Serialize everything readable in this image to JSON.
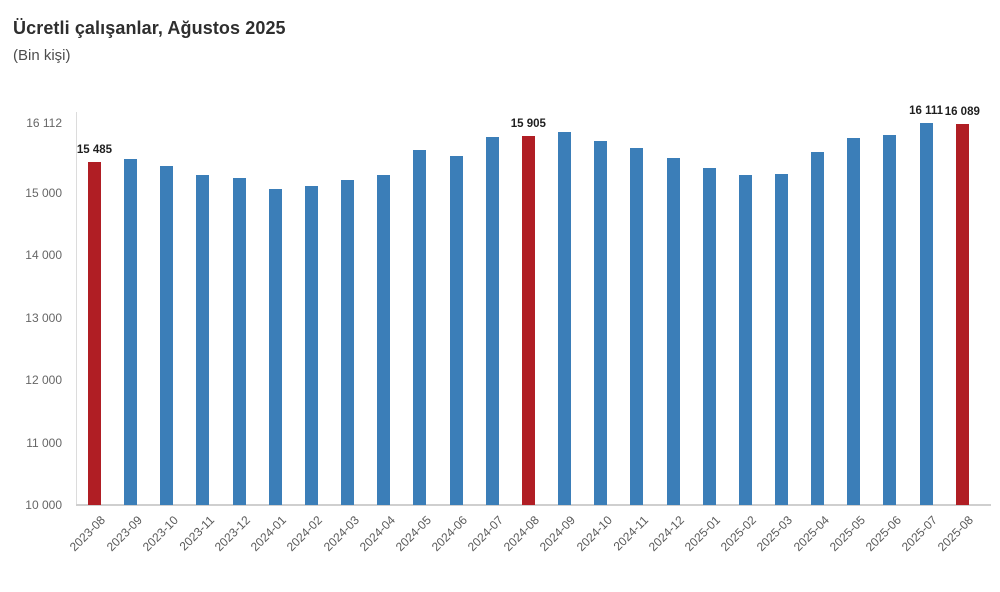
{
  "title": "Ücretli çalışanlar, Ağustos 2025",
  "subtitle": "(Bin kişi)",
  "colors": {
    "bar_blue": "#3B7EB8",
    "bar_red": "#B01E24",
    "title_text": "#2E2E2E",
    "subtitle_text": "#4D4D4D",
    "axis_label": "#666666",
    "x_label": "#595959",
    "axis_line": "#CFCFCF",
    "data_label": "#1F1F1F",
    "background": "#FFFFFF"
  },
  "chart_data": {
    "type": "bar",
    "title": "Ücretli çalışanlar, Ağustos 2025",
    "subtitle": "(Bin kişi)",
    "xlabel": "",
    "ylabel": "Bin kişi",
    "grid": false,
    "legend": false,
    "ylim": [
      10000,
      16480
    ],
    "y_ticks": [
      16112,
      15000,
      14000,
      13000,
      12000,
      11000,
      10000
    ],
    "categories": [
      "2023-08",
      "2023-09",
      "2023-10",
      "2023-11",
      "2023-12",
      "2024-01",
      "2024-02",
      "2024-03",
      "2024-04",
      "2024-05",
      "2024-06",
      "2024-07",
      "2024-08",
      "2024-09",
      "2024-10",
      "2024-11",
      "2024-12",
      "2025-01",
      "2025-02",
      "2025-03",
      "2025-04",
      "2025-05",
      "2025-06",
      "2025-07",
      "2025-08"
    ],
    "values": [
      15485,
      15535,
      15425,
      15280,
      15225,
      15055,
      15105,
      15205,
      15275,
      15680,
      15585,
      15890,
      15905,
      15970,
      15830,
      15710,
      15555,
      15385,
      15280,
      15290,
      15645,
      15870,
      15920,
      16111,
      16089
    ],
    "highlight_indices": [
      0,
      12,
      24
    ],
    "labeled_indices": [
      0,
      12,
      23,
      24
    ],
    "data_labels": [
      "15 485",
      "15 905",
      "16 111",
      "16 089"
    ]
  }
}
